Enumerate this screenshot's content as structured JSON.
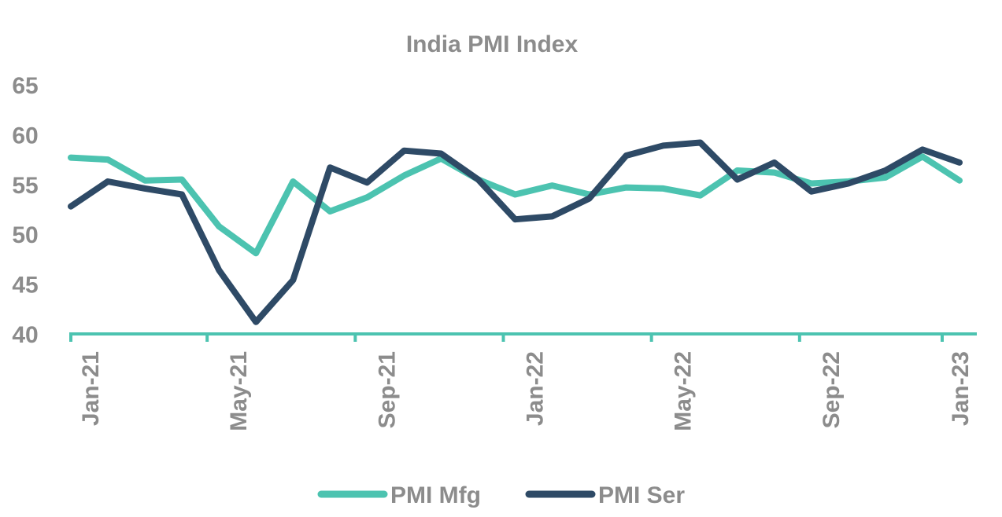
{
  "chart_data": {
    "type": "line",
    "title": "India PMI Index",
    "x": [
      "Jan-21",
      "Feb-21",
      "Mar-21",
      "Apr-21",
      "May-21",
      "Jun-21",
      "Jul-21",
      "Aug-21",
      "Sep-21",
      "Oct-21",
      "Nov-21",
      "Dec-21",
      "Jan-22",
      "Feb-22",
      "Mar-22",
      "Apr-22",
      "May-22",
      "Jun-22",
      "Jul-22",
      "Aug-22",
      "Sep-22",
      "Oct-22",
      "Nov-22",
      "Dec-22",
      "Jan-23"
    ],
    "x_tick_labels": [
      "Jan-21",
      "May-21",
      "Sep-21",
      "Jan-22",
      "May-22",
      "Sep-22",
      "Jan-23"
    ],
    "series": [
      {
        "name": "PMI Mfg",
        "color": "#4cc3b0",
        "values": [
          57.7,
          57.5,
          55.4,
          55.5,
          50.8,
          48.1,
          55.3,
          52.3,
          53.7,
          55.9,
          57.6,
          55.5,
          54.0,
          54.9,
          54.0,
          54.7,
          54.6,
          53.9,
          56.4,
          56.2,
          55.1,
          55.3,
          55.7,
          57.8,
          55.4
        ]
      },
      {
        "name": "PMI Ser",
        "color": "#2e4a66",
        "values": [
          52.8,
          55.3,
          54.6,
          54.0,
          46.4,
          41.2,
          45.4,
          56.7,
          55.2,
          58.4,
          58.1,
          55.5,
          51.5,
          51.8,
          53.6,
          57.9,
          58.9,
          59.2,
          55.5,
          57.2,
          54.3,
          55.1,
          56.4,
          58.5,
          57.2
        ]
      }
    ],
    "ylim": [
      40,
      65
    ],
    "y_ticks": [
      40,
      45,
      50,
      55,
      60,
      65
    ],
    "xlabel": "",
    "ylabel": "",
    "grid": false,
    "legend_position": "bottom"
  }
}
